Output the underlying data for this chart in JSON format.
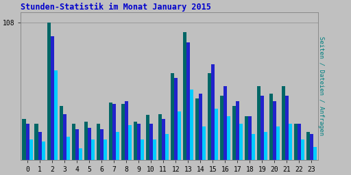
{
  "title": "Stunden-Statistik im Monat January 2015",
  "title_color": "#0000cc",
  "ylabel": "Seiten / Dateien / Anfragen",
  "ylabel_color": "#008080",
  "hours": [
    0,
    1,
    2,
    3,
    4,
    5,
    6,
    7,
    8,
    9,
    10,
    11,
    12,
    13,
    14,
    15,
    16,
    17,
    18,
    19,
    20,
    21,
    22,
    23
  ],
  "ytick_label": "108",
  "bg_color": "#c0c0c0",
  "colors": [
    "#006666",
    "#2222cc",
    "#00ccff"
  ],
  "bar_width": 0.28,
  "seiten": [
    32,
    28,
    108,
    42,
    28,
    30,
    28,
    45,
    44,
    30,
    35,
    36,
    68,
    100,
    48,
    68,
    50,
    42,
    34,
    58,
    52,
    58,
    28,
    22
  ],
  "dateien": [
    28,
    22,
    97,
    36,
    24,
    25,
    24,
    44,
    46,
    28,
    28,
    32,
    64,
    92,
    52,
    75,
    58,
    46,
    34,
    50,
    46,
    50,
    28,
    20
  ],
  "anfragen": [
    16,
    14,
    70,
    18,
    9,
    16,
    16,
    22,
    27,
    16,
    16,
    20,
    38,
    55,
    26,
    40,
    34,
    28,
    20,
    22,
    26,
    28,
    16,
    10
  ]
}
